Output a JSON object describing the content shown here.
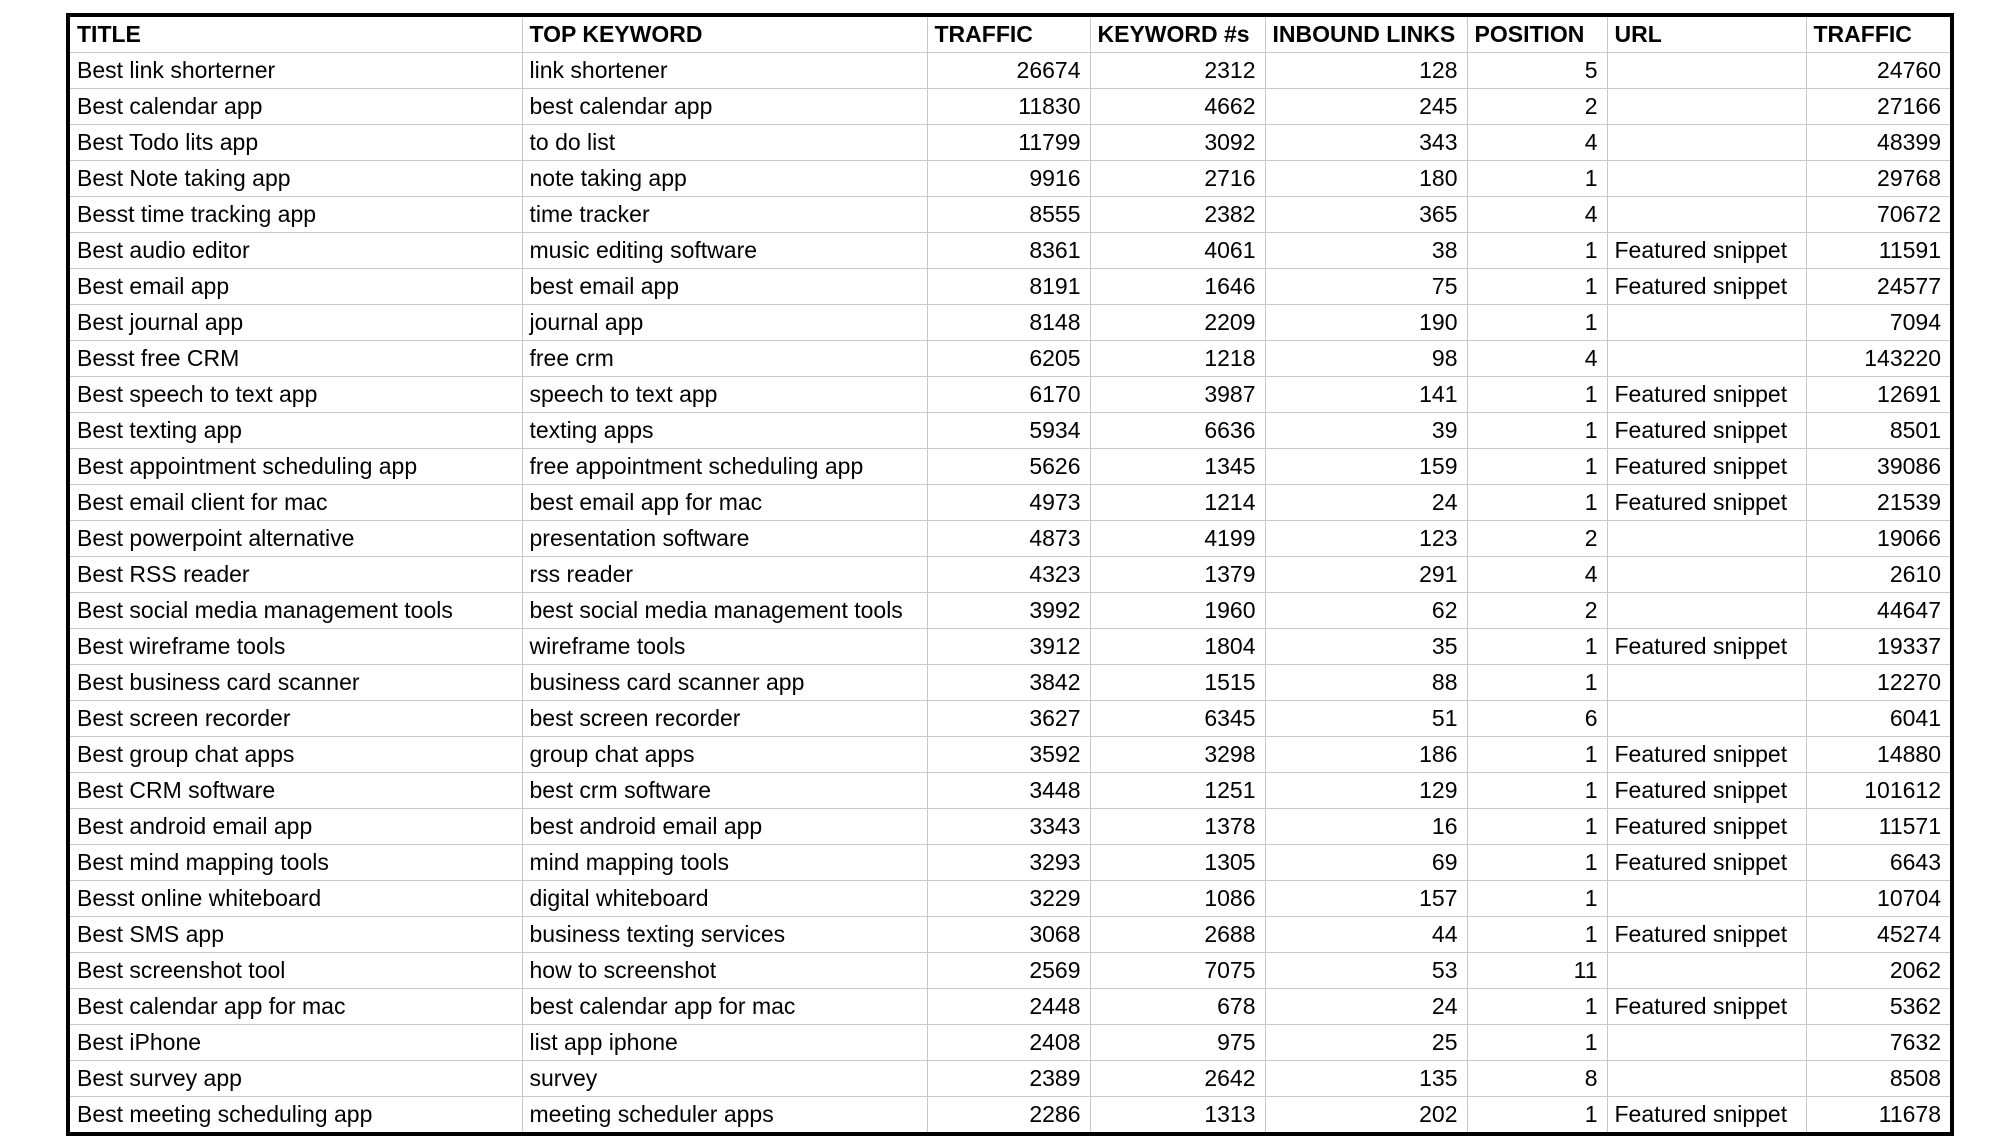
{
  "table": {
    "columns": [
      {
        "key": "title",
        "label": "TITLE",
        "align": "left"
      },
      {
        "key": "top_keyword",
        "label": "TOP KEYWORD",
        "align": "left"
      },
      {
        "key": "traffic",
        "label": "TRAFFIC",
        "align": "right"
      },
      {
        "key": "keyword_count",
        "label": "KEYWORD #s",
        "align": "right"
      },
      {
        "key": "inbound_links",
        "label": "INBOUND LINKS",
        "align": "right"
      },
      {
        "key": "position",
        "label": "POSITION",
        "align": "right"
      },
      {
        "key": "url",
        "label": "URL",
        "align": "left"
      },
      {
        "key": "traffic_2",
        "label": "TRAFFIC",
        "align": "right"
      }
    ],
    "rows": [
      {
        "title": "Best link shorterner",
        "top_keyword": "link shortener",
        "traffic": 26674,
        "keyword_count": 2312,
        "inbound_links": 128,
        "position": 5,
        "url": "",
        "traffic_2": 24760
      },
      {
        "title": "Best calendar app",
        "top_keyword": "best calendar app",
        "traffic": 11830,
        "keyword_count": 4662,
        "inbound_links": 245,
        "position": 2,
        "url": "",
        "traffic_2": 27166
      },
      {
        "title": "Best Todo lits app",
        "top_keyword": "to do list",
        "traffic": 11799,
        "keyword_count": 3092,
        "inbound_links": 343,
        "position": 4,
        "url": "",
        "traffic_2": 48399
      },
      {
        "title": "Best Note taking app",
        "top_keyword": "note taking app",
        "traffic": 9916,
        "keyword_count": 2716,
        "inbound_links": 180,
        "position": 1,
        "url": "",
        "traffic_2": 29768
      },
      {
        "title": "Besst time tracking app",
        "top_keyword": "time tracker",
        "traffic": 8555,
        "keyword_count": 2382,
        "inbound_links": 365,
        "position": 4,
        "url": "",
        "traffic_2": 70672
      },
      {
        "title": "Best audio editor",
        "top_keyword": "music editing software",
        "traffic": 8361,
        "keyword_count": 4061,
        "inbound_links": 38,
        "position": 1,
        "url": "Featured snippet",
        "traffic_2": 11591
      },
      {
        "title": "Best email app",
        "top_keyword": "best email app",
        "traffic": 8191,
        "keyword_count": 1646,
        "inbound_links": 75,
        "position": 1,
        "url": "Featured snippet",
        "traffic_2": 24577
      },
      {
        "title": "Best journal app",
        "top_keyword": "journal app",
        "traffic": 8148,
        "keyword_count": 2209,
        "inbound_links": 190,
        "position": 1,
        "url": "",
        "traffic_2": 7094
      },
      {
        "title": "Besst free CRM",
        "top_keyword": "free crm",
        "traffic": 6205,
        "keyword_count": 1218,
        "inbound_links": 98,
        "position": 4,
        "url": "",
        "traffic_2": 143220
      },
      {
        "title": "Best speech to text app",
        "top_keyword": "speech to text app",
        "traffic": 6170,
        "keyword_count": 3987,
        "inbound_links": 141,
        "position": 1,
        "url": "Featured snippet",
        "traffic_2": 12691
      },
      {
        "title": "Best texting app",
        "top_keyword": "texting apps",
        "traffic": 5934,
        "keyword_count": 6636,
        "inbound_links": 39,
        "position": 1,
        "url": "Featured snippet",
        "traffic_2": 8501
      },
      {
        "title": "Best appointment scheduling app",
        "top_keyword": "free appointment scheduling app",
        "traffic": 5626,
        "keyword_count": 1345,
        "inbound_links": 159,
        "position": 1,
        "url": "Featured snippet",
        "traffic_2": 39086
      },
      {
        "title": "Best email client for mac",
        "top_keyword": "best email app for mac",
        "traffic": 4973,
        "keyword_count": 1214,
        "inbound_links": 24,
        "position": 1,
        "url": "Featured snippet",
        "traffic_2": 21539
      },
      {
        "title": "Best powerpoint alternative",
        "top_keyword": "presentation software",
        "traffic": 4873,
        "keyword_count": 4199,
        "inbound_links": 123,
        "position": 2,
        "url": "",
        "traffic_2": 19066
      },
      {
        "title": "Best RSS reader",
        "top_keyword": "rss reader",
        "traffic": 4323,
        "keyword_count": 1379,
        "inbound_links": 291,
        "position": 4,
        "url": "",
        "traffic_2": 2610
      },
      {
        "title": "Best social media management tools",
        "top_keyword": "best social media management tools",
        "traffic": 3992,
        "keyword_count": 1960,
        "inbound_links": 62,
        "position": 2,
        "url": "",
        "traffic_2": 44647
      },
      {
        "title": "Best wireframe tools",
        "top_keyword": "wireframe tools",
        "traffic": 3912,
        "keyword_count": 1804,
        "inbound_links": 35,
        "position": 1,
        "url": "Featured snippet",
        "traffic_2": 19337
      },
      {
        "title": "Best business card scanner",
        "top_keyword": "business card scanner app",
        "traffic": 3842,
        "keyword_count": 1515,
        "inbound_links": 88,
        "position": 1,
        "url": "",
        "traffic_2": 12270
      },
      {
        "title": "Best screen recorder",
        "top_keyword": "best screen recorder",
        "traffic": 3627,
        "keyword_count": 6345,
        "inbound_links": 51,
        "position": 6,
        "url": "",
        "traffic_2": 6041
      },
      {
        "title": "Best group chat apps",
        "top_keyword": "group chat apps",
        "traffic": 3592,
        "keyword_count": 3298,
        "inbound_links": 186,
        "position": 1,
        "url": "Featured snippet",
        "traffic_2": 14880
      },
      {
        "title": "Best CRM software",
        "top_keyword": "best crm software",
        "traffic": 3448,
        "keyword_count": 1251,
        "inbound_links": 129,
        "position": 1,
        "url": "Featured snippet",
        "traffic_2": 101612
      },
      {
        "title": "Best android email app",
        "top_keyword": "best android email app",
        "traffic": 3343,
        "keyword_count": 1378,
        "inbound_links": 16,
        "position": 1,
        "url": "Featured snippet",
        "traffic_2": 11571
      },
      {
        "title": "Best mind mapping tools",
        "top_keyword": "mind mapping tools",
        "traffic": 3293,
        "keyword_count": 1305,
        "inbound_links": 69,
        "position": 1,
        "url": "Featured snippet",
        "traffic_2": 6643
      },
      {
        "title": "Besst online whiteboard",
        "top_keyword": "digital whiteboard",
        "traffic": 3229,
        "keyword_count": 1086,
        "inbound_links": 157,
        "position": 1,
        "url": "",
        "traffic_2": 10704
      },
      {
        "title": "Best SMS app",
        "top_keyword": "business texting services",
        "traffic": 3068,
        "keyword_count": 2688,
        "inbound_links": 44,
        "position": 1,
        "url": "Featured snippet",
        "traffic_2": 45274
      },
      {
        "title": "Best screenshot tool",
        "top_keyword": "how to screenshot",
        "traffic": 2569,
        "keyword_count": 7075,
        "inbound_links": 53,
        "position": 11,
        "url": "",
        "traffic_2": 2062
      },
      {
        "title": "Best calendar app for mac",
        "top_keyword": "best calendar app for mac",
        "traffic": 2448,
        "keyword_count": 678,
        "inbound_links": 24,
        "position": 1,
        "url": "Featured snippet",
        "traffic_2": 5362
      },
      {
        "title": "Best iPhone",
        "top_keyword": "list app iphone",
        "traffic": 2408,
        "keyword_count": 975,
        "inbound_links": 25,
        "position": 1,
        "url": "",
        "traffic_2": 7632
      },
      {
        "title": "Best survey app",
        "top_keyword": "survey",
        "traffic": 2389,
        "keyword_count": 2642,
        "inbound_links": 135,
        "position": 8,
        "url": "",
        "traffic_2": 8508
      },
      {
        "title": "Best meeting scheduling app",
        "top_keyword": "meeting scheduler apps",
        "traffic": 2286,
        "keyword_count": 1313,
        "inbound_links": 202,
        "position": 1,
        "url": "Featured snippet",
        "traffic_2": 11678
      }
    ]
  }
}
